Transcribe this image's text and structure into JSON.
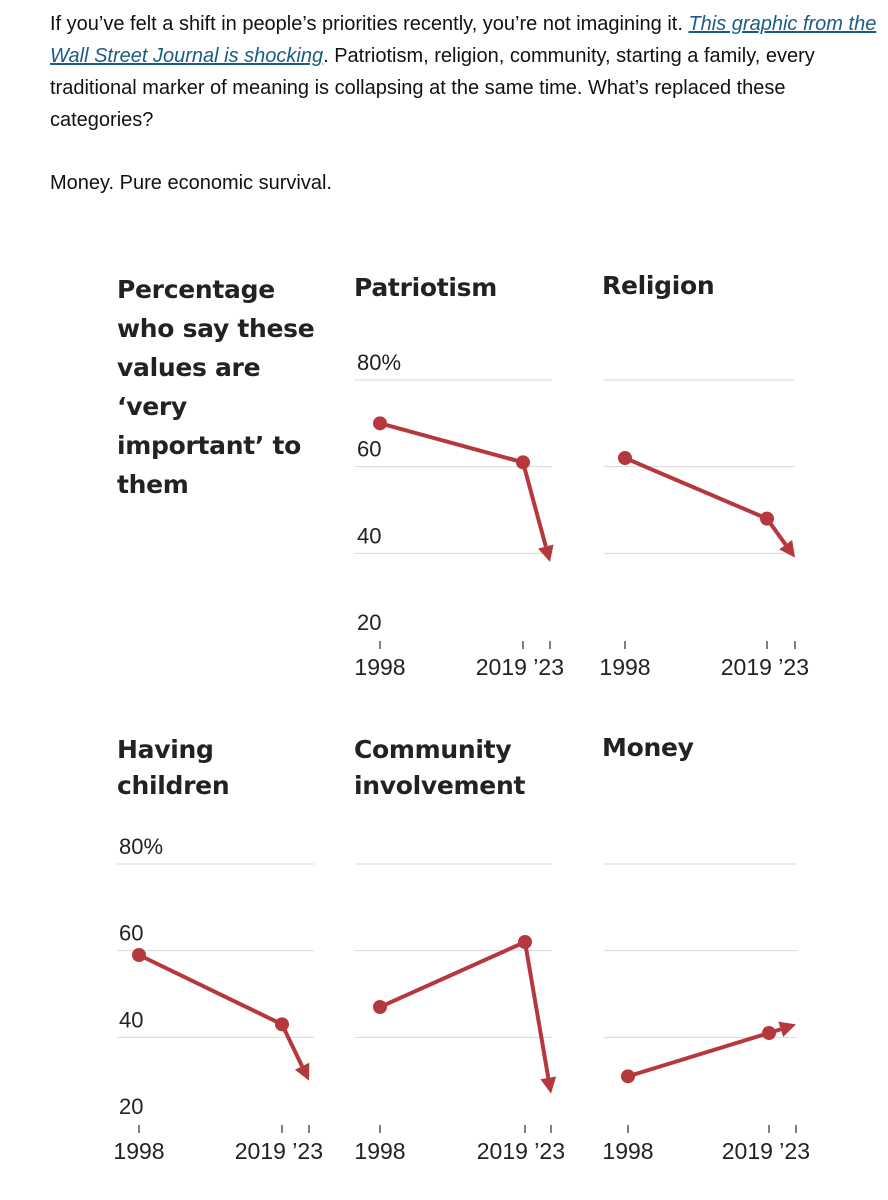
{
  "article": {
    "p1_before_link": "If you’ve felt a shift in people’s priorities recently, you’re not imagining it. ",
    "p1_link": "This graphic from the Wall Street Journal is shocking",
    "p1_after_link": ". Patriotism, religion, community, starting a family, every traditional marker of meaning is collapsing at the same time. What’s replaced these categories?",
    "p2": "Money. Pure economic survival."
  },
  "chart_intro": "Percentage who say these values are ‘very important’ to them",
  "colors": {
    "line": "#b5383c",
    "grid": "#d9d9d9",
    "tick": "#555555"
  },
  "chart_data": [
    {
      "type": "line",
      "title": "Patriotism",
      "x": [
        "1998",
        "2019",
        "2023"
      ],
      "y": [
        70,
        61,
        38
      ],
      "ylim": [
        20,
        80
      ],
      "yticks": [
        "80%",
        "60",
        "40",
        "20"
      ],
      "show_ylabels": true,
      "xtick_labels": [
        "1998",
        "2019 ’23"
      ]
    },
    {
      "type": "line",
      "title": "Religion",
      "x": [
        "1998",
        "2019",
        "2023"
      ],
      "y": [
        62,
        48,
        39
      ],
      "ylim": [
        20,
        80
      ],
      "show_ylabels": false,
      "xtick_labels": [
        "1998",
        "2019 ’23"
      ]
    },
    {
      "type": "line",
      "title": "Having children",
      "x": [
        "1998",
        "2019",
        "2023"
      ],
      "y": [
        59,
        43,
        30
      ],
      "ylim": [
        20,
        80
      ],
      "yticks": [
        "80%",
        "60",
        "40",
        "20"
      ],
      "show_ylabels": true,
      "xtick_labels": [
        "1998",
        "2019 ’23"
      ]
    },
    {
      "type": "line",
      "title": "Community involvement",
      "x": [
        "1998",
        "2019",
        "2023"
      ],
      "y": [
        47,
        62,
        27
      ],
      "ylim": [
        20,
        80
      ],
      "show_ylabels": false,
      "xtick_labels": [
        "1998",
        "2019 ’23"
      ]
    },
    {
      "type": "line",
      "title": "Money",
      "x": [
        "1998",
        "2019",
        "2023"
      ],
      "y": [
        31,
        41,
        43
      ],
      "ylim": [
        20,
        80
      ],
      "show_ylabels": false,
      "xtick_labels": [
        "1998",
        "2019 ’23"
      ]
    }
  ]
}
